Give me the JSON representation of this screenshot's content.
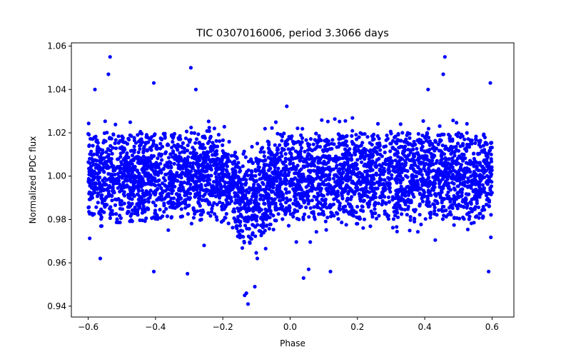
{
  "chart_data": {
    "type": "scatter",
    "title": "TIC 0307016006, period 3.3066 days",
    "xlabel": "Phase",
    "ylabel": "Normalized PDC flux",
    "xlim": [
      -0.65,
      0.665
    ],
    "ylim": [
      0.935,
      1.0615
    ],
    "xticks": [
      -0.6,
      -0.4,
      -0.2,
      0.0,
      0.2,
      0.4,
      0.6
    ],
    "xtick_labels": [
      "−0.6",
      "−0.4",
      "−0.2",
      "0.0",
      "0.2",
      "0.4",
      "0.6"
    ],
    "yticks": [
      0.94,
      0.96,
      0.98,
      1.0,
      1.02,
      1.04,
      1.06
    ],
    "ytick_labels": [
      "0.94",
      "0.96",
      "0.98",
      "1.00",
      "1.02",
      "1.04",
      "1.06"
    ],
    "grid": false,
    "marker_color": "#0000ff",
    "series": [
      {
        "name": "flux",
        "phase_range": [
          -0.6,
          0.6
        ],
        "band_center": 1.0,
        "band_halfwidth": 0.02,
        "transit_center": -0.12,
        "transit_depth": 0.012,
        "outliers": [
          {
            "x": -0.535,
            "y": 1.055
          },
          {
            "x": -0.54,
            "y": 1.047
          },
          {
            "x": -0.295,
            "y": 1.05
          },
          {
            "x": -0.405,
            "y": 1.043
          },
          {
            "x": -0.58,
            "y": 1.04
          },
          {
            "x": -0.28,
            "y": 1.04
          },
          {
            "x": 0.46,
            "y": 1.055
          },
          {
            "x": 0.455,
            "y": 1.047
          },
          {
            "x": 0.595,
            "y": 1.043
          },
          {
            "x": 0.41,
            "y": 1.04
          },
          {
            "x": -0.125,
            "y": 0.941
          },
          {
            "x": -0.105,
            "y": 0.949
          },
          {
            "x": -0.135,
            "y": 0.945
          },
          {
            "x": -0.13,
            "y": 0.946
          },
          {
            "x": -0.305,
            "y": 0.955
          },
          {
            "x": -0.405,
            "y": 0.956
          },
          {
            "x": 0.59,
            "y": 0.956
          },
          {
            "x": 0.12,
            "y": 0.956
          },
          {
            "x": 0.04,
            "y": 0.953
          },
          {
            "x": 0.055,
            "y": 0.957
          }
        ]
      }
    ]
  }
}
